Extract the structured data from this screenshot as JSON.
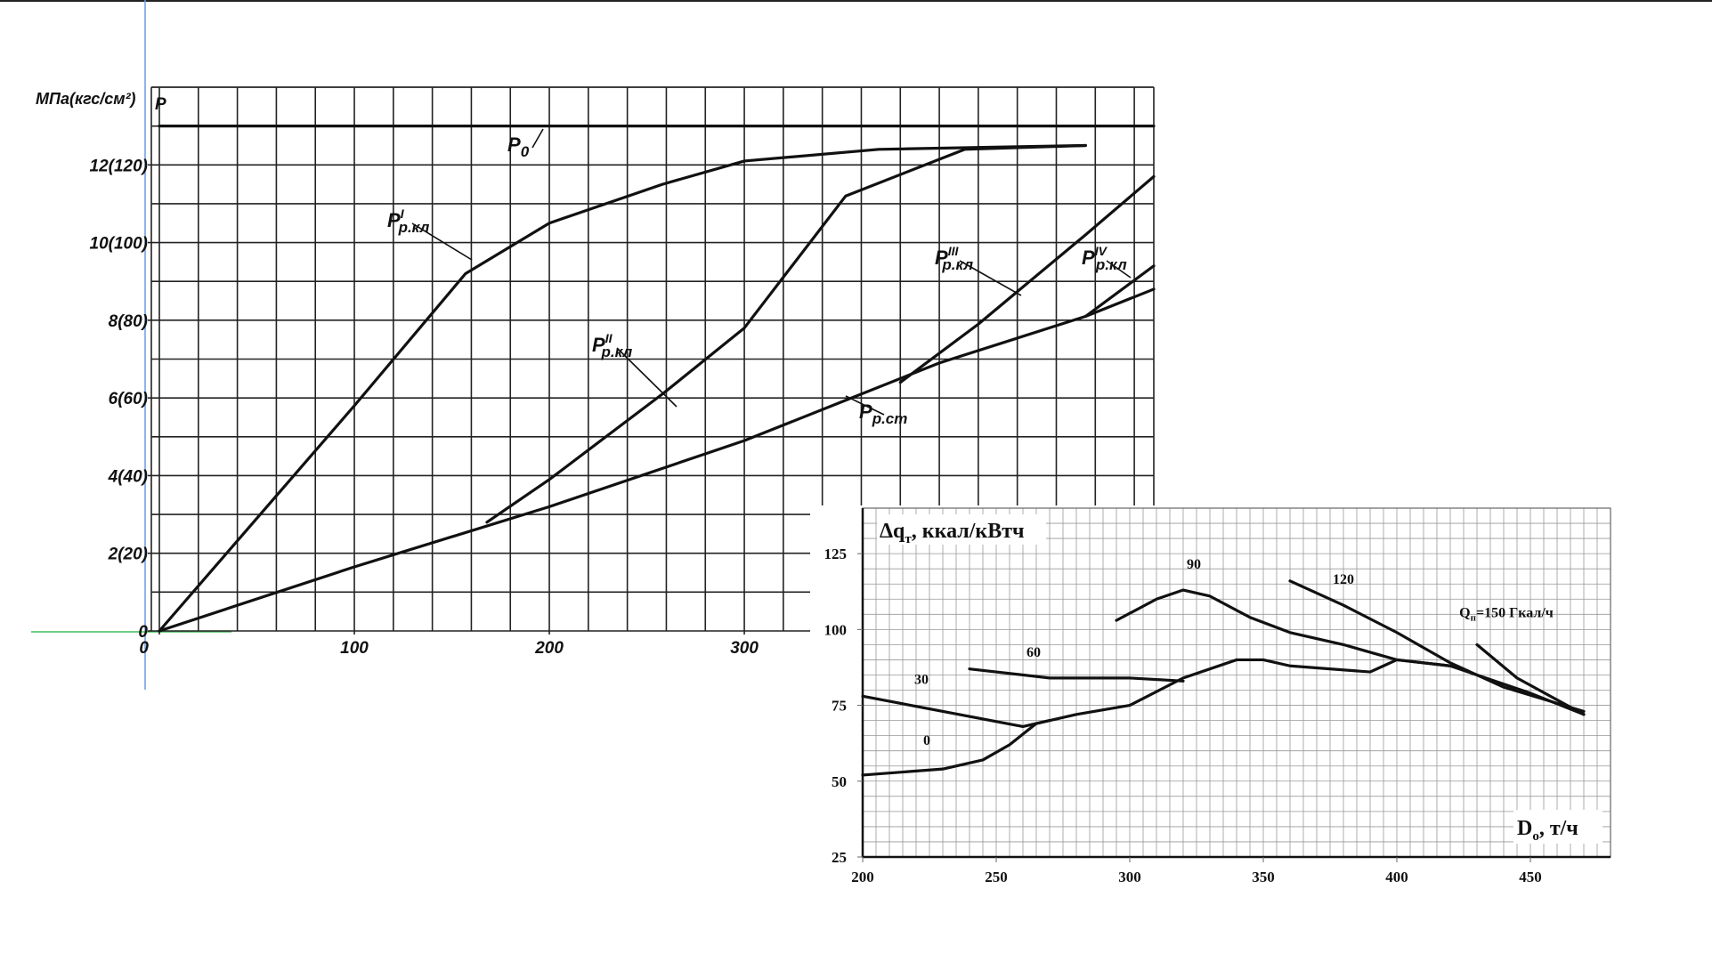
{
  "chart_data": [
    {
      "type": "line",
      "y_label": "МПа(кгс/см²)",
      "y_symbol": "P",
      "xlim": [
        0,
        510
      ],
      "ylim": [
        0,
        14
      ],
      "xticks": [
        0,
        100,
        200,
        300
      ],
      "yticks": [
        {
          "value": 0,
          "label": "0"
        },
        {
          "value": 2,
          "label": "2(20)"
        },
        {
          "value": 4,
          "label": "4(40)"
        },
        {
          "value": 6,
          "label": "6(60)"
        },
        {
          "value": 8,
          "label": "8(80)"
        },
        {
          "value": 10,
          "label": "10(100)"
        },
        {
          "value": 12,
          "label": "12(120)"
        }
      ],
      "grid": true,
      "grid_step": {
        "x": 20,
        "y": 1
      },
      "series": [
        {
          "name": "P",
          "sub": "0",
          "color": "#111111",
          "x": [
            0,
            475,
            510
          ],
          "values": [
            13,
            13,
            13
          ]
        },
        {
          "name": "P",
          "sup": "I",
          "sub": "р.кл",
          "color": "#111111",
          "x": [
            0,
            50,
            100,
            157,
            200,
            258,
            300,
            369,
            475
          ],
          "values": [
            0,
            2.9,
            5.8,
            9.2,
            10.5,
            11.5,
            12.1,
            12.4,
            12.5
          ]
        },
        {
          "name": "P",
          "sup": "II",
          "sub": "р.кл",
          "color": "#111111",
          "x": [
            168,
            200,
            258,
            300,
            352,
            413,
            475
          ],
          "values": [
            2.8,
            3.9,
            6.1,
            7.8,
            11.2,
            12.4,
            12.5
          ]
        },
        {
          "name": "P",
          "sup": "III",
          "sub": "р.кл",
          "color": "#111111",
          "x": [
            380,
            420,
            475,
            510
          ],
          "values": [
            6.4,
            7.9,
            10.2,
            11.7
          ]
        },
        {
          "name": "P",
          "sup": "IV",
          "sub": "р.кл",
          "color": "#111111",
          "x": [
            475,
            510
          ],
          "values": [
            8.1,
            9.4
          ]
        },
        {
          "name": "P",
          "sub": "р.ст",
          "color": "#111111",
          "x": [
            0,
            100,
            200,
            300,
            350,
            400,
            475,
            510
          ],
          "values": [
            0,
            1.65,
            3.2,
            4.9,
            5.9,
            6.9,
            8.1,
            8.8
          ]
        }
      ]
    },
    {
      "type": "line",
      "y_label": {
        "text": "Δq",
        "sub": "т",
        "rest": ", ккал/кВтч"
      },
      "x_label": {
        "text": "D",
        "sub": "о",
        "rest": ", т/ч"
      },
      "xlim": [
        200,
        480
      ],
      "ylim": [
        25,
        140
      ],
      "xticks": [
        200,
        250,
        300,
        350,
        400,
        450
      ],
      "yticks": [
        25,
        50,
        75,
        100,
        125
      ],
      "grid": true,
      "grid_step": {
        "x": 5,
        "y": 5
      },
      "series": [
        {
          "name": "0",
          "color": "#111111",
          "x": [
            200,
            230,
            245,
            255,
            265,
            280,
            300,
            320,
            340,
            350,
            360,
            390,
            395,
            400,
            420,
            450,
            470
          ],
          "values": [
            52,
            54,
            57,
            62,
            69,
            72,
            75,
            84,
            90,
            90,
            88,
            86,
            88,
            90,
            88,
            79,
            72
          ]
        },
        {
          "name": "30",
          "color": "#111111",
          "x": [
            200,
            260,
            270
          ],
          "values": [
            78,
            68,
            70
          ]
        },
        {
          "name": "60",
          "color": "#111111",
          "x": [
            240,
            270,
            300,
            320
          ],
          "values": [
            87,
            84,
            84,
            83
          ]
        },
        {
          "name": "90",
          "color": "#111111",
          "x": [
            295,
            310,
            320,
            330,
            345,
            360,
            380,
            400,
            420
          ],
          "values": [
            103,
            110,
            113,
            111,
            104,
            99,
            95,
            90,
            88
          ]
        },
        {
          "name": "120",
          "color": "#111111",
          "x": [
            360,
            380,
            400,
            420,
            440,
            470
          ],
          "values": [
            116,
            108,
            99,
            89,
            81,
            73
          ]
        },
        {
          "name": "Q",
          "sub": "п",
          "rest": "=150 Гкал/ч",
          "color": "#111111",
          "x": [
            430,
            445,
            470
          ],
          "values": [
            95,
            84,
            72
          ]
        }
      ]
    }
  ]
}
